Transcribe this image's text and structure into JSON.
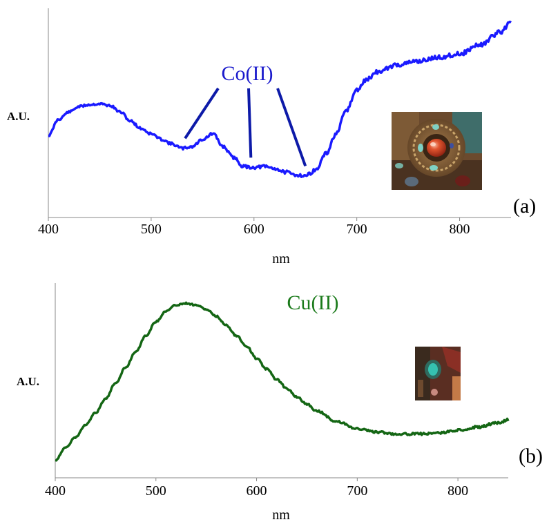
{
  "chart_data": [
    {
      "type": "line",
      "panel_label": "(a)",
      "xlabel": "nm",
      "ylabel": "A.U.",
      "xlim": [
        400,
        850
      ],
      "xticks": [
        400,
        500,
        600,
        700,
        800
      ],
      "color": "#1a1aff",
      "annotation": "Co(II)",
      "annotation_color": "#1a1acc",
      "marked_bands_nm": [
        533,
        597,
        650
      ],
      "inset": "photo of ornament with red cabochon and turquoise stones",
      "series": [
        {
          "x": [
            400,
            410,
            420,
            430,
            440,
            450,
            460,
            470,
            480,
            490,
            500,
            510,
            520,
            530,
            540,
            550,
            560,
            570,
            580,
            590,
            600,
            610,
            620,
            630,
            640,
            650,
            660,
            670,
            680,
            690,
            700,
            710,
            720,
            740,
            760,
            780,
            800,
            820,
            840,
            850
          ],
          "values": [
            0.55,
            0.64,
            0.68,
            0.71,
            0.72,
            0.725,
            0.715,
            0.68,
            0.63,
            0.59,
            0.56,
            0.53,
            0.505,
            0.48,
            0.49,
            0.53,
            0.56,
            0.49,
            0.43,
            0.38,
            0.375,
            0.38,
            0.37,
            0.35,
            0.335,
            0.33,
            0.36,
            0.45,
            0.56,
            0.69,
            0.8,
            0.86,
            0.9,
            0.94,
            0.96,
            0.98,
            1.0,
            1.05,
            1.12,
            1.18
          ]
        }
      ]
    },
    {
      "type": "line",
      "panel_label": "(b)",
      "xlabel": "nm",
      "ylabel": "A.U.",
      "xlim": [
        400,
        850
      ],
      "xticks": [
        400,
        500,
        600,
        700,
        800
      ],
      "color": "#146614",
      "annotation": "Cu(II)",
      "annotation_color": "#1a7a1a",
      "inset": "photo of ornament with turquoise stone",
      "series": [
        {
          "x": [
            400,
            410,
            420,
            430,
            440,
            450,
            460,
            470,
            480,
            490,
            500,
            510,
            520,
            530,
            540,
            550,
            560,
            570,
            580,
            590,
            600,
            610,
            620,
            630,
            640,
            650,
            660,
            680,
            700,
            720,
            740,
            760,
            780,
            800,
            820,
            840,
            850
          ],
          "values": [
            0.02,
            0.09,
            0.15,
            0.22,
            0.29,
            0.37,
            0.46,
            0.55,
            0.64,
            0.73,
            0.81,
            0.87,
            0.905,
            0.915,
            0.905,
            0.88,
            0.84,
            0.79,
            0.73,
            0.67,
            0.6,
            0.54,
            0.48,
            0.43,
            0.38,
            0.34,
            0.3,
            0.24,
            0.2,
            0.18,
            0.17,
            0.17,
            0.175,
            0.19,
            0.21,
            0.235,
            0.25
          ]
        }
      ]
    }
  ]
}
